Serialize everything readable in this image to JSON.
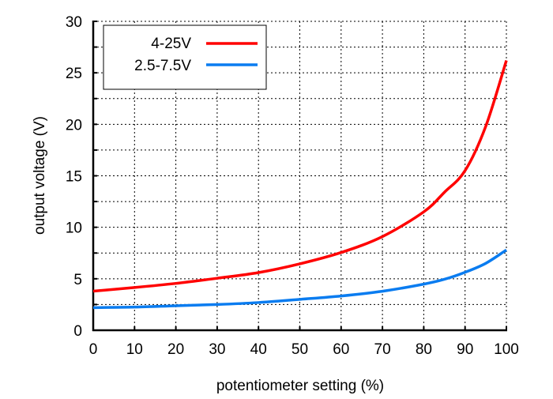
{
  "chart_data": {
    "type": "line",
    "title": "",
    "xlabel": "potentiometer setting (%)",
    "ylabel": "output voltage (V)",
    "xlim": [
      0,
      100
    ],
    "ylim": [
      0,
      30
    ],
    "xticks": [
      0,
      10,
      20,
      30,
      40,
      50,
      60,
      70,
      80,
      90,
      100
    ],
    "yticks": [
      0,
      5,
      10,
      15,
      20,
      25,
      30
    ],
    "grid": true,
    "grid_y_step": 2.5,
    "legend_position": "top-left",
    "x": [
      0,
      10,
      20,
      30,
      40,
      50,
      60,
      70,
      80,
      85,
      90,
      95,
      100
    ],
    "series": [
      {
        "name": "4-25V",
        "color": "#ff0000",
        "values": [
          3.8,
          4.15,
          4.55,
          5.05,
          5.6,
          6.45,
          7.55,
          9.1,
          11.5,
          13.4,
          15.5,
          19.8,
          26.2
        ]
      },
      {
        "name": "2.5-7.5V",
        "color": "#0a7cf0",
        "values": [
          2.2,
          2.25,
          2.38,
          2.5,
          2.69,
          3.0,
          3.33,
          3.79,
          4.48,
          4.95,
          5.63,
          6.5,
          7.8
        ]
      }
    ]
  }
}
